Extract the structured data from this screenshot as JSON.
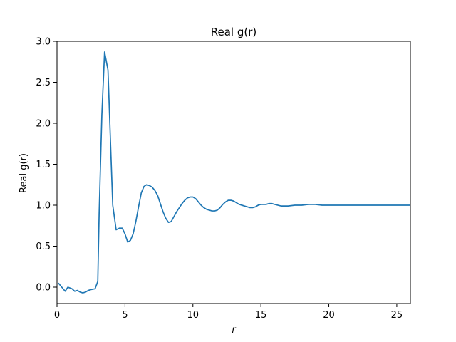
{
  "chart_data": {
    "type": "line",
    "title": "Real g(r)",
    "xlabel": "r",
    "ylabel": "Real g(r)",
    "xlim": [
      0,
      26
    ],
    "ylim": [
      -0.2,
      3.0
    ],
    "x_ticks": [
      0,
      5,
      10,
      15,
      20,
      25
    ],
    "y_ticks": [
      0.0,
      0.5,
      1.0,
      1.5,
      2.0,
      2.5,
      3.0
    ],
    "x_tick_labels": [
      "0",
      "5",
      "10",
      "15",
      "20",
      "25"
    ],
    "y_tick_labels": [
      "0.0",
      "0.5",
      "1.0",
      "1.5",
      "2.0",
      "2.5",
      "3.0"
    ],
    "grid": false,
    "legend": "none",
    "line_color": "#1f77b4",
    "series": [
      {
        "x": [
          0.1,
          0.6,
          0.8,
          1.1,
          1.3,
          1.5,
          1.7,
          1.9,
          2.1,
          2.3,
          2.5,
          2.8,
          3.0,
          3.1,
          3.3,
          3.5,
          3.75,
          3.95,
          4.1,
          4.35,
          4.6,
          4.8,
          5.0,
          5.2,
          5.4,
          5.6,
          5.8,
          6.0,
          6.2,
          6.4,
          6.6,
          6.8,
          7.0,
          7.2,
          7.4,
          7.6,
          7.8,
          8.0,
          8.2,
          8.4,
          8.6,
          8.8,
          9.0,
          9.2,
          9.4,
          9.6,
          9.8,
          10.0,
          10.2,
          10.4,
          10.6,
          10.8,
          11.0,
          11.2,
          11.4,
          11.6,
          11.8,
          12.0,
          12.2,
          12.4,
          12.6,
          12.8,
          13.0,
          13.2,
          13.4,
          13.6,
          13.8,
          14.0,
          14.2,
          14.4,
          14.6,
          14.8,
          15.0,
          15.2,
          15.4,
          15.6,
          15.8,
          16.0,
          16.5,
          17.0,
          17.5,
          18.0,
          18.5,
          19.0,
          19.5,
          20.0,
          20.5,
          21.0,
          21.5,
          22.0,
          22.5,
          23.0,
          23.5,
          24.0,
          24.5,
          25.0,
          25.5,
          26.0
        ],
        "y": [
          0.05,
          -0.05,
          0.0,
          -0.02,
          -0.05,
          -0.04,
          -0.06,
          -0.07,
          -0.06,
          -0.04,
          -0.03,
          -0.02,
          0.07,
          0.9,
          2.1,
          2.87,
          2.65,
          1.7,
          1.0,
          0.7,
          0.72,
          0.72,
          0.65,
          0.55,
          0.57,
          0.65,
          0.8,
          0.98,
          1.15,
          1.23,
          1.25,
          1.24,
          1.22,
          1.18,
          1.12,
          1.02,
          0.92,
          0.84,
          0.79,
          0.8,
          0.86,
          0.92,
          0.97,
          1.02,
          1.06,
          1.09,
          1.1,
          1.1,
          1.08,
          1.04,
          1.0,
          0.97,
          0.95,
          0.94,
          0.93,
          0.93,
          0.94,
          0.97,
          1.01,
          1.04,
          1.06,
          1.06,
          1.05,
          1.03,
          1.01,
          1.0,
          0.99,
          0.98,
          0.97,
          0.97,
          0.98,
          1.0,
          1.01,
          1.01,
          1.01,
          1.02,
          1.02,
          1.01,
          0.99,
          0.99,
          1.0,
          1.0,
          1.01,
          1.01,
          1.0,
          1.0,
          1.0,
          1.0,
          1.0,
          1.0,
          1.0,
          1.0,
          1.0,
          1.0,
          1.0,
          1.0,
          1.0,
          1.0
        ]
      }
    ]
  }
}
